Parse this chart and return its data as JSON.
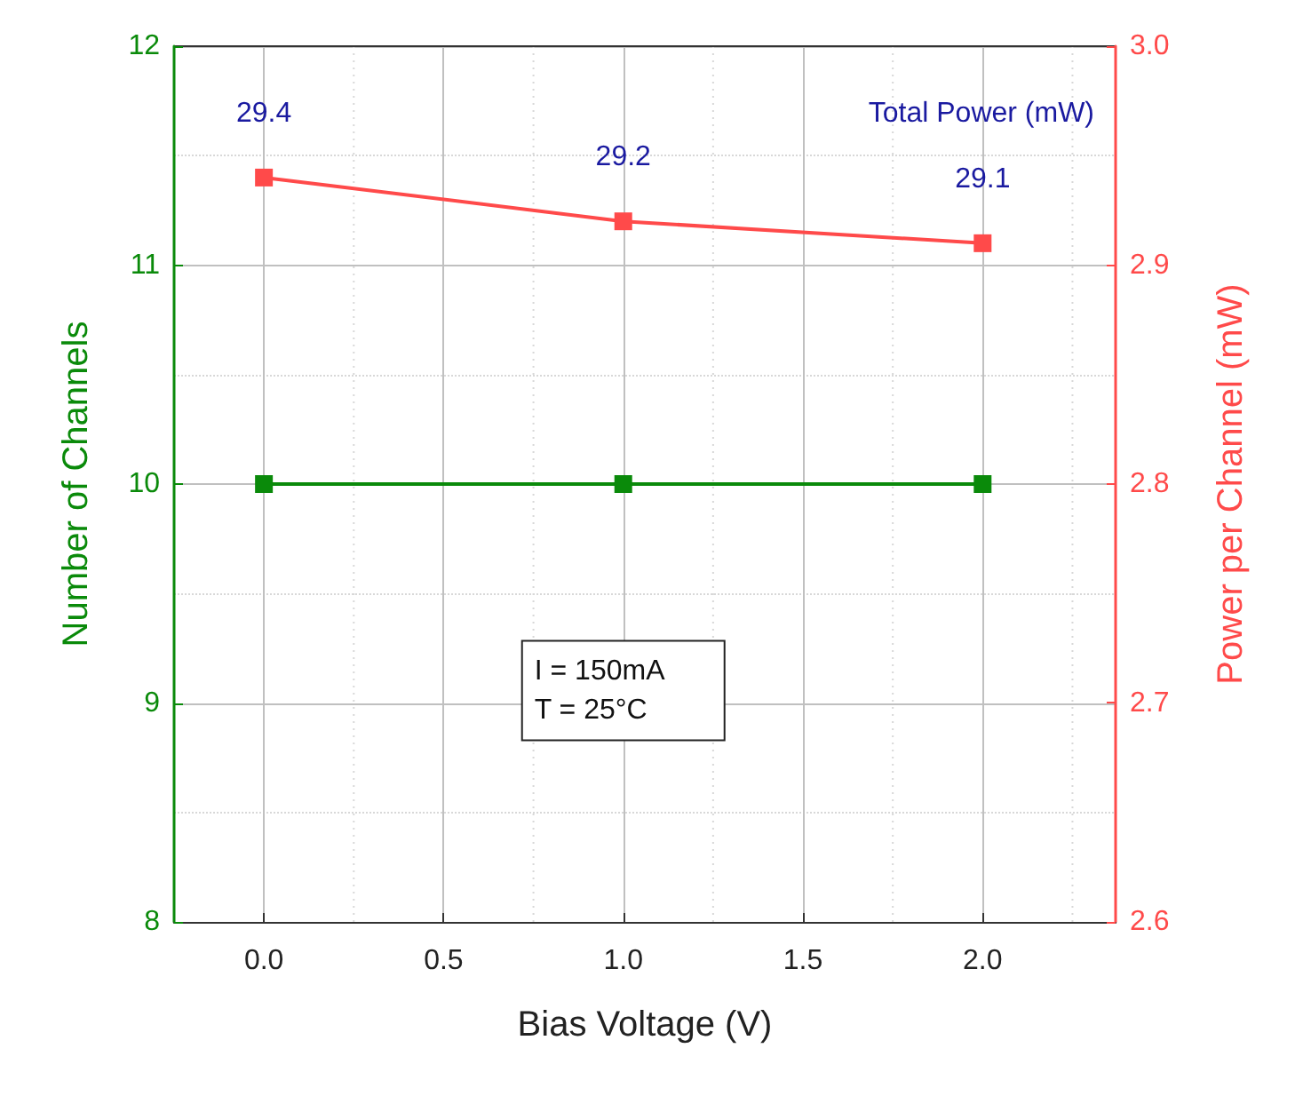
{
  "chart_data": {
    "type": "line",
    "xlabel": "Bias Voltage (V)",
    "ylabel": "Number of Channels",
    "y2label": "Power per Channel (mW)",
    "x": [
      0,
      1,
      2
    ],
    "series": [
      {
        "type": "line",
        "color": "#0a8a0a",
        "values": [
          10,
          10,
          10
        ]
      },
      {
        "type": "line",
        "color": "#ff4a4a",
        "values": [
          2.94,
          2.92,
          2.91
        ],
        "axis": "y2"
      }
    ],
    "xlim": [
      -0.25,
      2.37
    ],
    "xticks": [
      {
        "value": 0,
        "label": "0.0"
      },
      {
        "value": 0.5,
        "label": "0.5"
      },
      {
        "value": 1,
        "label": "1.0"
      },
      {
        "value": 1.5,
        "label": "1.5"
      },
      {
        "value": 2,
        "label": "2.0"
      }
    ],
    "ylim": [
      8,
      12
    ],
    "yticks": [
      8,
      9,
      10,
      11,
      12
    ],
    "y2lim": [
      2.6,
      3.0
    ],
    "y2ticks": [
      {
        "value": 2.6,
        "label": "2.6"
      },
      {
        "value": 2.7,
        "label": "2.7"
      },
      {
        "value": 2.8,
        "label": "2.8"
      },
      {
        "value": 2.9,
        "label": "2.9"
      },
      {
        "value": 3.0,
        "label": "3.0"
      }
    ],
    "annotations": [
      "29.4",
      "29.2",
      "29.1",
      "Total Power (mW)",
      "I = 150mA",
      "T = 25°C"
    ],
    "grid": true,
    "marker": "square",
    "line_style": "solid"
  }
}
